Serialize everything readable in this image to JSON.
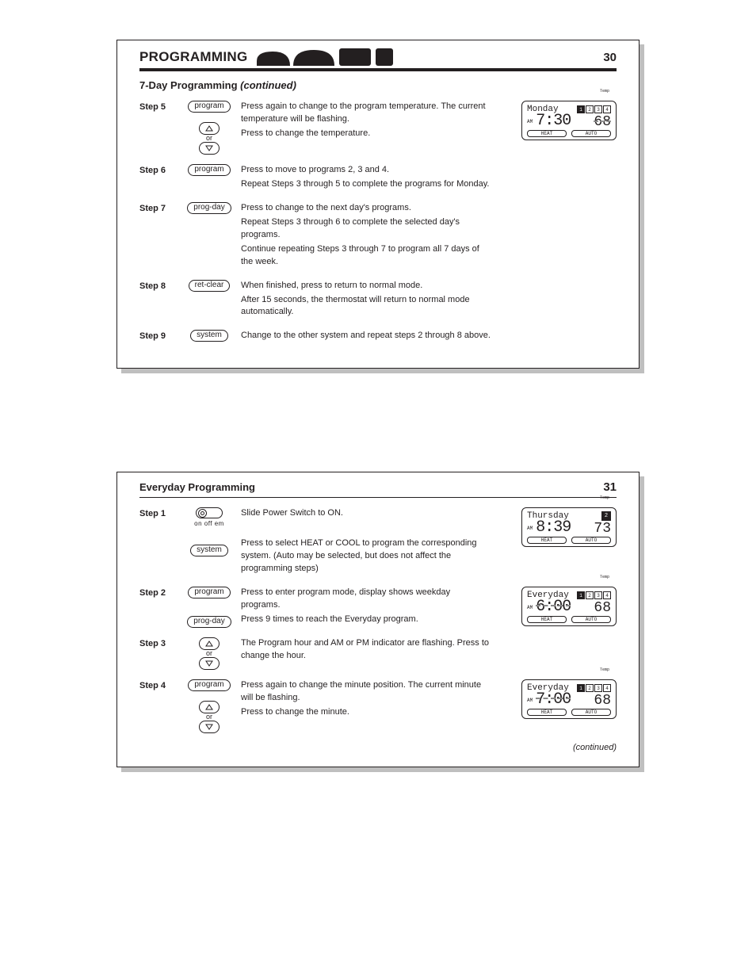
{
  "page30": {
    "header_title": "PROGRAMMING",
    "page_number": "30",
    "section_title": "7-Day Programming",
    "section_continued": "(continued)",
    "steps": [
      {
        "label": "Step 5",
        "buttons": [
          {
            "text": "program",
            "kind": "pill"
          }
        ],
        "arrows": true,
        "lines": [
          "Press again to change to the program temperature. The current temperature will be flashing.",
          "Press to change the temperature."
        ],
        "lcd": {
          "day": "Monday",
          "ampm": "AM",
          "time": "7:30",
          "temp": "68",
          "prog_active": 0,
          "system": "HEAT",
          "fan": "AUTO",
          "temp_flash": true
        }
      },
      {
        "label": "Step 6",
        "buttons": [
          {
            "text": "program",
            "kind": "pill"
          }
        ],
        "lines": [
          "Press to move to programs 2, 3 and 4.",
          "Repeat Steps 3 through 5 to complete the programs for Monday."
        ]
      },
      {
        "label": "Step 7",
        "buttons": [
          {
            "text": "prog-day",
            "kind": "pill"
          }
        ],
        "lines": [
          "Press to change to the next day's programs.",
          "Repeat Steps 3 through 6 to complete the selected day's programs.",
          "Continue repeating Steps 3 through 7 to program all 7 days of the week."
        ]
      },
      {
        "label": "Step 8",
        "buttons": [
          {
            "text": "ret-clear",
            "kind": "pill"
          }
        ],
        "lines": [
          "When finished, press to return to normal mode.",
          "After 15 seconds, the thermostat will return to normal mode automatically."
        ]
      },
      {
        "label": "Step 9",
        "buttons": [
          {
            "text": "system",
            "kind": "pill"
          }
        ],
        "lines": [
          "Change to the other system and repeat steps 2 through 8 above."
        ]
      }
    ]
  },
  "page31": {
    "section_title": "Everyday Programming",
    "page_number": "31",
    "continued_footer": "(continued)",
    "steps": [
      {
        "label": "Step 1",
        "buttons": [
          {
            "kind": "power"
          },
          {
            "text": "system",
            "kind": "pill"
          }
        ],
        "lines": [
          "Slide Power Switch to ON.",
          "",
          "Press to select HEAT or COOL to program the corresponding system. (Auto may be selected, but does not affect the programming steps)"
        ],
        "lcd": {
          "day": "Thursday",
          "ampm": "AM",
          "time": "8:39",
          "temp": "73",
          "prog_single": "2",
          "system": "HEAT",
          "fan": "AUTO"
        }
      },
      {
        "label": "Step 2",
        "buttons": [
          {
            "text": "program",
            "kind": "pill"
          },
          {
            "text": "prog-day",
            "kind": "pill"
          }
        ],
        "lines": [
          "Press to enter program mode, display shows weekday programs.",
          "Press 9 times to reach the Everyday program."
        ],
        "lcd": {
          "day": "Everyday",
          "ampm": "AM",
          "time": "6:00",
          "temp": "68",
          "prog_active": 0,
          "system": "HEAT",
          "fan": "AUTO",
          "time_flash": true
        }
      },
      {
        "label": "Step 3",
        "arrows": true,
        "lines": [
          "The Program hour and AM or PM indicator are flashing. Press to change the hour."
        ]
      },
      {
        "label": "Step 4",
        "buttons": [
          {
            "text": "program",
            "kind": "pill"
          }
        ],
        "arrows": true,
        "lines": [
          "Press again to change the minute position. The current minute will be flashing.",
          "Press to change the minute."
        ],
        "lcd": {
          "day": "Everyday",
          "ampm": "AM",
          "time": "7:00",
          "temp": "68",
          "prog_active": 0,
          "system": "HEAT",
          "fan": "AUTO",
          "minute_flash": true
        }
      }
    ]
  },
  "power_labels": "on  off  em",
  "or_text": "or",
  "temp_label": "Temp",
  "colors": {
    "ink": "#231f20",
    "shadow": "#bfbfbf",
    "ghost": "#bdbdbd"
  }
}
